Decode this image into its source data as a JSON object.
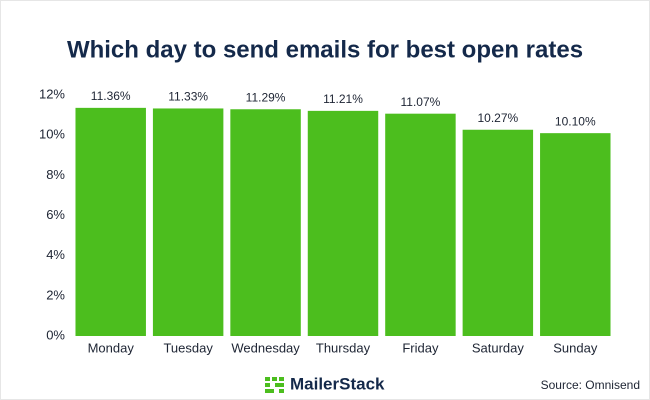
{
  "chart_data": {
    "type": "bar",
    "title": "Which day to send emails for best open rates",
    "categories": [
      "Monday",
      "Tuesday",
      "Wednesday",
      "Thursday",
      "Friday",
      "Saturday",
      "Sunday"
    ],
    "values": [
      11.36,
      11.33,
      11.29,
      11.21,
      11.07,
      10.27,
      10.1
    ],
    "value_labels": [
      "11.36%",
      "11.33%",
      "11.29%",
      "11.21%",
      "11.07%",
      "10.27%",
      "10.10%"
    ],
    "color": "#4cbe1e",
    "ylim": [
      0,
      12
    ],
    "yticks": [
      {
        "value": 0,
        "label": "0%"
      },
      {
        "value": 2,
        "label": "2%"
      },
      {
        "value": 4,
        "label": "4%"
      },
      {
        "value": 6,
        "label": "6%"
      },
      {
        "value": 8,
        "label": "8%"
      },
      {
        "value": 10,
        "label": "10%"
      },
      {
        "value": 12,
        "label": "12%"
      }
    ],
    "grid": false,
    "brand": "MailerStack",
    "source": "Source: Omnisend"
  }
}
